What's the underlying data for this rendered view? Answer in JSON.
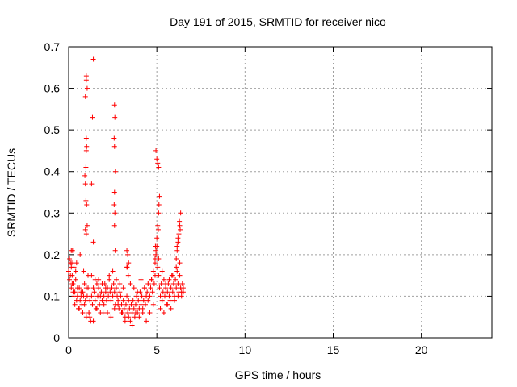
{
  "chart_data": {
    "type": "scatter",
    "title": "Day 191 of 2015, SRMTID for receiver nico",
    "xlabel": "GPS time / hours",
    "ylabel": "SRMTID / TECUs",
    "xlim": [
      0,
      24
    ],
    "ylim": [
      0,
      0.7
    ],
    "x_ticks": [
      0,
      5,
      10,
      15,
      20
    ],
    "x_tick_labels": [
      "0",
      "5",
      "10",
      "15",
      "20"
    ],
    "y_ticks": [
      0,
      0.1,
      0.2,
      0.3,
      0.4,
      0.5,
      0.6,
      0.7
    ],
    "y_tick_labels": [
      "0",
      "0.1",
      "0.2",
      "0.3",
      "0.4",
      "0.5",
      "0.6",
      "0.7"
    ],
    "grid": true,
    "marker": "+",
    "color": "#ff0000",
    "series": [
      {
        "name": "SRMTID",
        "x": [
          0.0,
          0.05,
          0.1,
          0.15,
          0.2,
          0.25,
          0.3,
          0.35,
          0.4,
          0.45,
          0.5,
          0.05,
          0.1,
          0.2,
          0.3,
          0.4,
          0.15,
          0.25,
          0.35,
          0.5,
          0.55,
          0.6,
          0.65,
          0.7,
          0.75,
          0.8,
          0.85,
          0.9,
          0.95,
          1.0,
          0.6,
          0.7,
          0.8,
          0.9,
          1.0,
          1.05,
          1.1,
          1.15,
          1.2,
          1.25,
          1.3,
          1.35,
          1.4,
          1.45,
          1.5,
          1.55,
          1.6,
          1.65,
          1.7,
          1.75,
          1.8,
          1.85,
          1.9,
          1.95,
          2.0,
          2.05,
          2.1,
          2.15,
          2.2,
          2.25,
          2.3,
          2.35,
          2.4,
          2.45,
          2.5,
          2.55,
          2.6,
          2.65,
          2.7,
          2.75,
          2.8,
          2.85,
          2.9,
          2.95,
          3.0,
          3.05,
          3.1,
          3.15,
          3.2,
          3.25,
          3.3,
          3.35,
          3.4,
          3.45,
          3.5,
          3.55,
          3.6,
          3.65,
          3.7,
          3.75,
          3.8,
          3.85,
          3.9,
          3.95,
          4.0,
          4.05,
          4.1,
          4.15,
          4.2,
          4.25,
          4.3,
          4.35,
          4.4,
          4.45,
          4.5,
          4.55,
          4.6,
          4.65,
          4.7,
          4.75,
          4.8,
          4.85,
          4.9,
          4.95,
          5.0,
          5.05,
          5.1,
          5.15,
          5.2,
          5.25,
          5.3,
          5.35,
          5.4,
          5.45,
          5.5,
          5.55,
          5.6,
          5.65,
          5.7,
          5.75,
          5.8,
          5.85,
          5.9,
          5.95,
          6.0,
          6.05,
          6.1,
          6.15,
          6.2,
          6.25,
          6.3,
          6.35,
          6.4,
          6.45,
          6.5,
          1.2,
          1.4,
          1.6,
          1.8,
          2.0,
          2.2,
          2.4,
          2.6,
          2.8,
          3.0,
          3.2,
          3.4,
          3.6,
          3.8,
          4.0,
          4.2,
          4.4,
          4.6,
          4.8,
          5.2,
          5.4,
          5.6,
          5.8,
          6.0,
          6.2,
          6.4,
          1.3,
          1.7,
          2.1,
          2.5,
          2.9,
          3.3,
          3.7,
          4.1,
          4.5,
          4.9,
          5.3,
          5.7,
          6.1,
          6.5,
          0.22,
          0.45,
          0.65,
          0.85,
          1.1,
          1.5,
          1.9,
          2.3,
          2.7,
          3.1,
          3.5,
          3.9,
          4.3,
          4.7,
          5.1,
          5.5,
          5.9,
          6.3,
          1.0,
          1.0,
          0.95,
          1.05,
          1.0,
          1.02,
          1.0,
          0.98,
          0.92,
          0.95,
          0.98,
          1.02,
          1.05,
          0.95,
          1.0,
          1.4,
          1.35,
          1.3,
          1.4,
          2.6,
          2.62,
          2.58,
          2.6,
          2.65,
          2.6,
          2.58,
          2.62,
          2.6,
          2.64,
          3.3,
          3.35,
          3.4,
          3.32,
          3.38,
          4.9,
          4.95,
          5.0,
          5.05,
          5.1,
          5.15,
          4.95,
          5.0,
          5.05,
          5.1,
          5.12,
          5.08,
          4.92,
          6.1,
          6.15,
          6.2,
          6.25,
          6.3,
          6.35,
          6.15,
          6.2,
          6.28,
          6.32,
          0.15,
          0.18
        ],
        "y": [
          0.16,
          0.14,
          0.18,
          0.12,
          0.15,
          0.13,
          0.17,
          0.11,
          0.14,
          0.09,
          0.12,
          0.19,
          0.15,
          0.13,
          0.1,
          0.16,
          0.17,
          0.11,
          0.08,
          0.1,
          0.07,
          0.12,
          0.09,
          0.11,
          0.08,
          0.06,
          0.1,
          0.13,
          0.09,
          0.12,
          0.07,
          0.1,
          0.11,
          0.08,
          0.05,
          0.1,
          0.12,
          0.06,
          0.09,
          0.04,
          0.1,
          0.08,
          0.12,
          0.11,
          0.09,
          0.07,
          0.13,
          0.1,
          0.12,
          0.08,
          0.1,
          0.11,
          0.09,
          0.06,
          0.1,
          0.13,
          0.11,
          0.09,
          0.12,
          0.1,
          0.14,
          0.11,
          0.09,
          0.12,
          0.1,
          0.13,
          0.11,
          0.08,
          0.12,
          0.1,
          0.09,
          0.07,
          0.11,
          0.1,
          0.08,
          0.06,
          0.09,
          0.07,
          0.05,
          0.08,
          0.1,
          0.06,
          0.09,
          0.07,
          0.04,
          0.08,
          0.06,
          0.09,
          0.07,
          0.05,
          0.08,
          0.1,
          0.06,
          0.09,
          0.07,
          0.11,
          0.08,
          0.1,
          0.06,
          0.09,
          0.12,
          0.08,
          0.1,
          0.11,
          0.09,
          0.13,
          0.1,
          0.12,
          0.14,
          0.11,
          0.16,
          0.13,
          0.18,
          0.2,
          0.22,
          0.17,
          0.15,
          0.12,
          0.1,
          0.13,
          0.09,
          0.11,
          0.14,
          0.1,
          0.12,
          0.08,
          0.11,
          0.13,
          0.1,
          0.09,
          0.12,
          0.15,
          0.11,
          0.13,
          0.1,
          0.14,
          0.12,
          0.16,
          0.13,
          0.11,
          0.15,
          0.12,
          0.1,
          0.13,
          0.11,
          0.05,
          0.04,
          0.07,
          0.06,
          0.08,
          0.06,
          0.05,
          0.07,
          0.08,
          0.06,
          0.04,
          0.05,
          0.03,
          0.06,
          0.05,
          0.07,
          0.04,
          0.06,
          0.08,
          0.07,
          0.06,
          0.08,
          0.07,
          0.09,
          0.1,
          0.11,
          0.15,
          0.14,
          0.12,
          0.16,
          0.13,
          0.17,
          0.12,
          0.14,
          0.13,
          0.15,
          0.16,
          0.14,
          0.17,
          0.12,
          0.21,
          0.18,
          0.2,
          0.16,
          0.15,
          0.14,
          0.13,
          0.15,
          0.14,
          0.12,
          0.13,
          0.11,
          0.12,
          0.14,
          0.19,
          0.13,
          0.15,
          0.18,
          0.63,
          0.62,
          0.58,
          0.6,
          0.48,
          0.46,
          0.45,
          0.41,
          0.39,
          0.37,
          0.33,
          0.32,
          0.27,
          0.26,
          0.25,
          0.67,
          0.53,
          0.37,
          0.23,
          0.56,
          0.53,
          0.48,
          0.46,
          0.4,
          0.35,
          0.32,
          0.3,
          0.27,
          0.21,
          0.21,
          0.2,
          0.18,
          0.17,
          0.15,
          0.19,
          0.21,
          0.24,
          0.27,
          0.3,
          0.34,
          0.45,
          0.43,
          0.42,
          0.41,
          0.32,
          0.26,
          0.22,
          0.19,
          0.21,
          0.23,
          0.25,
          0.27,
          0.3,
          0.22,
          0.24,
          0.28,
          0.26,
          0.21,
          0.18
        ]
      }
    ]
  }
}
